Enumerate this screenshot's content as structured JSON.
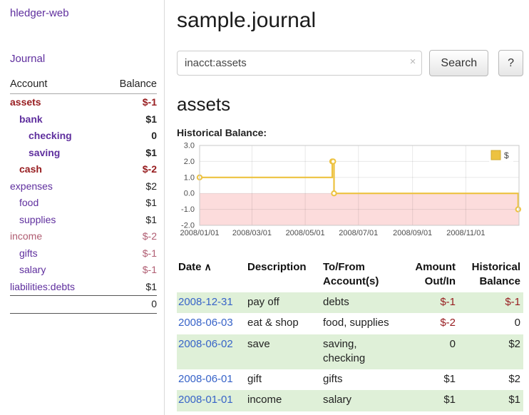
{
  "app": {
    "title": "hledger-web",
    "nav": {
      "journal": "Journal"
    }
  },
  "colors": {
    "link_purple": "#5f2f9e",
    "date_link_blue": "#3763c8",
    "negative_strong": "#971c1f",
    "negative_muted": "#b05d72",
    "row_green": "#dff0d8",
    "chart_line": "#edc240",
    "chart_negative_region": "#fcdcdc"
  },
  "sidebar": {
    "columns": {
      "account": "Account",
      "balance": "Balance"
    },
    "accounts": [
      {
        "name": "assets",
        "balance": "$-1"
      },
      {
        "name": "bank",
        "balance": "$1"
      },
      {
        "name": "checking",
        "balance": "0"
      },
      {
        "name": "saving",
        "balance": "$1"
      },
      {
        "name": "cash",
        "balance": "$-2"
      },
      {
        "name": "expenses",
        "balance": "$2"
      },
      {
        "name": "food",
        "balance": "$1"
      },
      {
        "name": "supplies",
        "balance": "$1"
      },
      {
        "name": "income",
        "balance": "$-2"
      },
      {
        "name": "gifts",
        "balance": "$-1"
      },
      {
        "name": "salary",
        "balance": "$-1"
      },
      {
        "name": "liabilities:debts",
        "balance": "$1"
      }
    ],
    "total": "0"
  },
  "main": {
    "title": "sample.journal",
    "search": {
      "value": "inacct:assets",
      "clear_icon": "×",
      "search_button": "Search",
      "help_button": "?"
    },
    "account_heading": "assets",
    "chart_heading": "Historical Balance:"
  },
  "chart_data": {
    "type": "line",
    "step": true,
    "title": "Historical Balance:",
    "series": [
      {
        "name": "$",
        "color": "#edc240",
        "points": [
          [
            "2008-01-01",
            1
          ],
          [
            "2008-06-01",
            2
          ],
          [
            "2008-06-02",
            2
          ],
          [
            "2008-06-03",
            0
          ],
          [
            "2008-12-31",
            -1
          ]
        ]
      }
    ],
    "xlim": [
      "2008-01-01",
      "2009-01-01"
    ],
    "ylim": [
      -2,
      3
    ],
    "yticks": [
      3.0,
      2.0,
      1.0,
      0.0,
      -1.0,
      -2.0
    ],
    "xticks": [
      "2008/01/01",
      "2008/03/01",
      "2008/05/01",
      "2008/07/01",
      "2008/09/01",
      "2008/11/01"
    ],
    "legend": {
      "label": "$",
      "position": "top-right"
    },
    "negative_region": true,
    "xlabel": "",
    "ylabel": ""
  },
  "register": {
    "headers": {
      "date": "Date",
      "sort_icon": "∧",
      "description": "Description",
      "accounts": "To/From Account(s)",
      "amount": "Amount Out/In",
      "balance": "Historical Balance"
    },
    "rows": [
      {
        "date": "2008-12-31",
        "description": "pay off",
        "accounts": "debts",
        "amount": "$-1",
        "balance": "$-1"
      },
      {
        "date": "2008-06-03",
        "description": "eat & shop",
        "accounts": "food, supplies",
        "amount": "$-2",
        "balance": "0"
      },
      {
        "date": "2008-06-02",
        "description": "save",
        "accounts": "saving, checking",
        "amount": "0",
        "balance": "$2"
      },
      {
        "date": "2008-06-01",
        "description": "gift",
        "accounts": "gifts",
        "amount": "$1",
        "balance": "$2"
      },
      {
        "date": "2008-01-01",
        "description": "income",
        "accounts": "salary",
        "amount": "$1",
        "balance": "$1"
      }
    ]
  }
}
